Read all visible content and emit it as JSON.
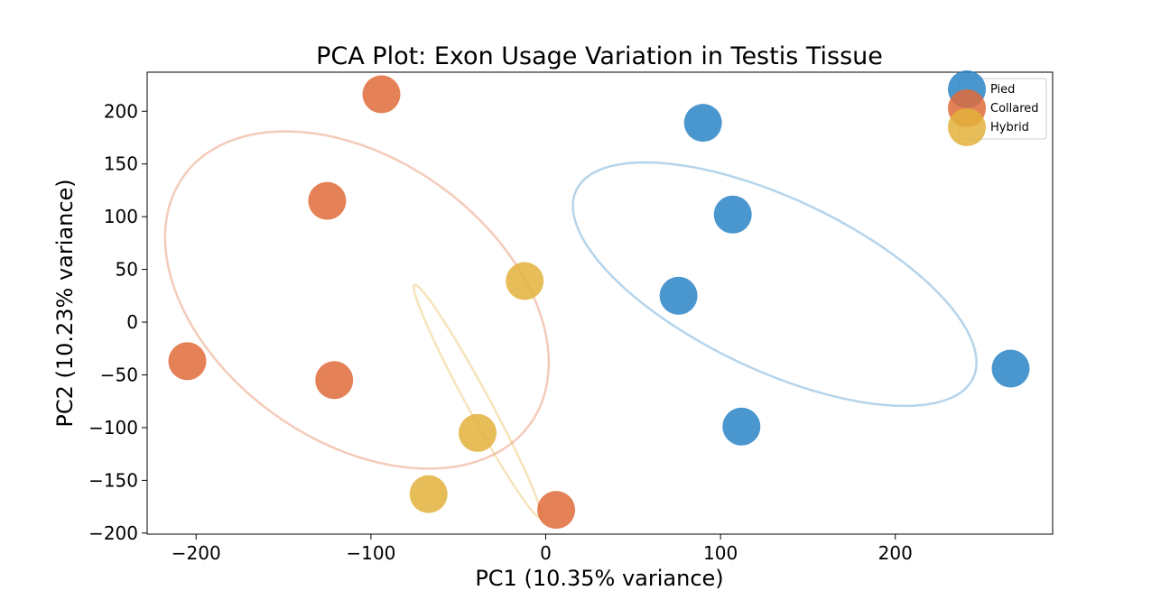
{
  "chart_data": {
    "type": "scatter",
    "title": "PCA Plot: Exon Usage Variation in Testis Tissue",
    "xlabel": "PC1 (10.35% variance)",
    "ylabel": "PC2 (10.23% variance)",
    "xlim": [
      -228,
      290
    ],
    "ylim": [
      -201,
      237
    ],
    "xticks": [
      -200,
      -100,
      0,
      100,
      200
    ],
    "yticks": [
      -200,
      -150,
      -100,
      -50,
      0,
      50,
      100,
      150,
      200
    ],
    "grid": false,
    "legend_position": "top-right",
    "series": [
      {
        "name": "Pied",
        "color": "#2a84c6",
        "points": [
          [
            90,
            189
          ],
          [
            107,
            102
          ],
          [
            76,
            25
          ],
          [
            112,
            -99
          ],
          [
            266,
            -44
          ]
        ],
        "ellipse": {
          "center": [
            131,
            36
          ],
          "semi_major": 148,
          "semi_minor": 69,
          "angle_deg": -45
        }
      },
      {
        "name": "Collared",
        "color": "#e06b3a",
        "points": [
          [
            -94,
            216
          ],
          [
            -125,
            115
          ],
          [
            -205,
            -37
          ],
          [
            -121,
            -55
          ],
          [
            6,
            -178
          ]
        ],
        "ellipse": {
          "center": [
            -108,
            21
          ],
          "semi_major": 168,
          "semi_minor": 97,
          "angle_deg": -68
        }
      },
      {
        "name": "Hybrid",
        "color": "#e3b23c",
        "points": [
          [
            -12,
            39
          ],
          [
            -39,
            -105
          ],
          [
            -67,
            -163
          ]
        ],
        "ellipse": {
          "center": [
            -39,
            -75
          ],
          "semi_major": 116,
          "semi_minor": 7,
          "angle_deg": -72
        }
      }
    ]
  }
}
